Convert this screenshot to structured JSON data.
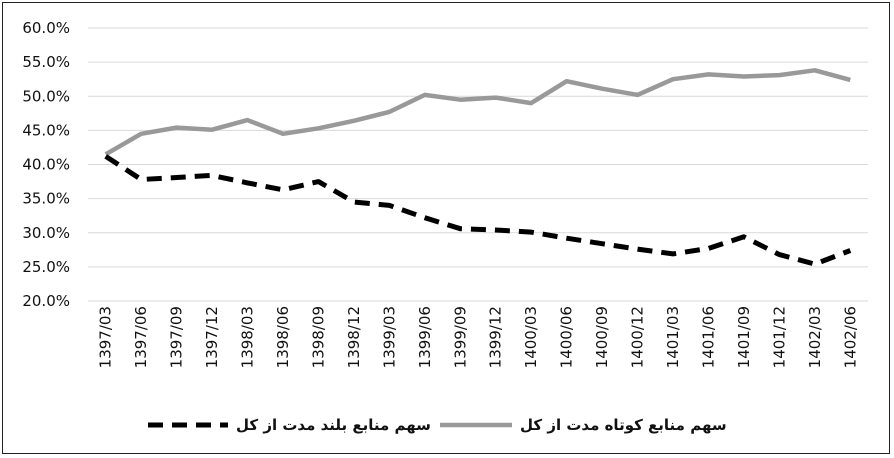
{
  "chart_data": {
    "type": "line",
    "title": "",
    "xlabel": "",
    "ylabel": "",
    "x": [
      "1397/03",
      "1397/06",
      "1397/09",
      "1397/12",
      "1398/03",
      "1398/06",
      "1398/09",
      "1398/12",
      "1399/03",
      "1399/06",
      "1399/09",
      "1399/12",
      "1400/03",
      "1400/06",
      "1400/09",
      "1400/12",
      "1401/03",
      "1401/06",
      "1401/09",
      "1401/12",
      "1402/03",
      "1402/06"
    ],
    "ylim": [
      20,
      60
    ],
    "yticks": [
      "20.0%",
      "25.0%",
      "30.0%",
      "35.0%",
      "40.0%",
      "45.0%",
      "50.0%",
      "55.0%",
      "60.0%"
    ],
    "grid": true,
    "legend_position": "bottom",
    "series": [
      {
        "name": "سهم منابع بلند مدت از کل",
        "style": "dashed",
        "color": "#000000",
        "values": [
          41.2,
          37.8,
          38.1,
          38.4,
          37.3,
          36.3,
          37.5,
          34.5,
          34.0,
          32.2,
          30.6,
          30.4,
          30.1,
          29.2,
          28.4,
          27.6,
          26.9,
          27.7,
          29.4,
          26.8,
          25.4,
          27.4
        ]
      },
      {
        "name": "سهم منابع کوتاه مدت از کل",
        "style": "solid",
        "color": "#999999",
        "values": [
          41.5,
          44.5,
          45.4,
          45.1,
          46.5,
          44.5,
          45.3,
          46.4,
          47.7,
          50.2,
          49.5,
          49.8,
          49.0,
          52.2,
          51.1,
          50.2,
          52.5,
          53.2,
          52.9,
          53.1,
          53.8,
          52.4
        ]
      }
    ]
  }
}
